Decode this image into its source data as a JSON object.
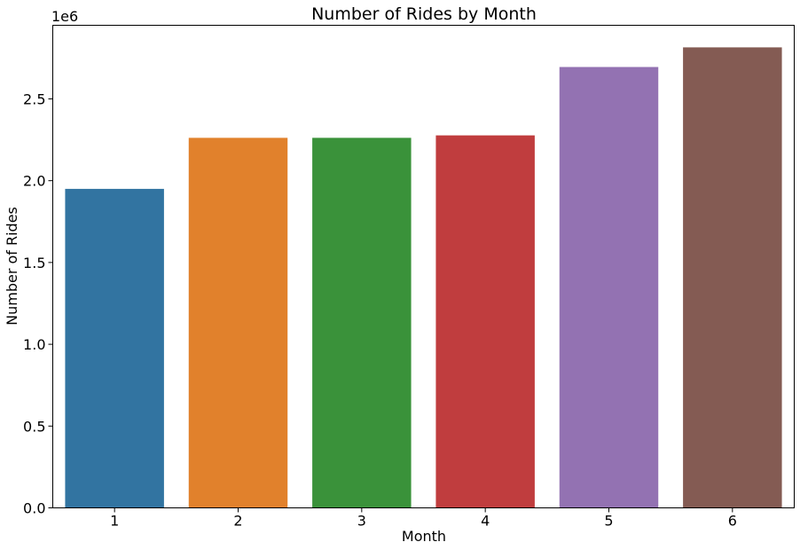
{
  "chart_data": {
    "type": "bar",
    "title": "Number of Rides by Month",
    "xlabel": "Month",
    "ylabel": "Number of Rides",
    "y_offset_label": "1e6",
    "categories": [
      "1",
      "2",
      "3",
      "4",
      "5",
      "6"
    ],
    "values": [
      1950000,
      2262000,
      2262000,
      2277000,
      2695000,
      2815000
    ],
    "colors": [
      "#3274a1",
      "#e1812c",
      "#3a923a",
      "#c03d3e",
      "#9372b2",
      "#845b53"
    ],
    "ylim": [
      0,
      2950000
    ],
    "y_ticks": [
      0,
      500000,
      1000000,
      1500000,
      2000000,
      2500000
    ],
    "y_tick_labels": [
      "0.0",
      "0.5",
      "1.0",
      "1.5",
      "2.0",
      "2.5"
    ],
    "grid": false,
    "legend": "none"
  }
}
